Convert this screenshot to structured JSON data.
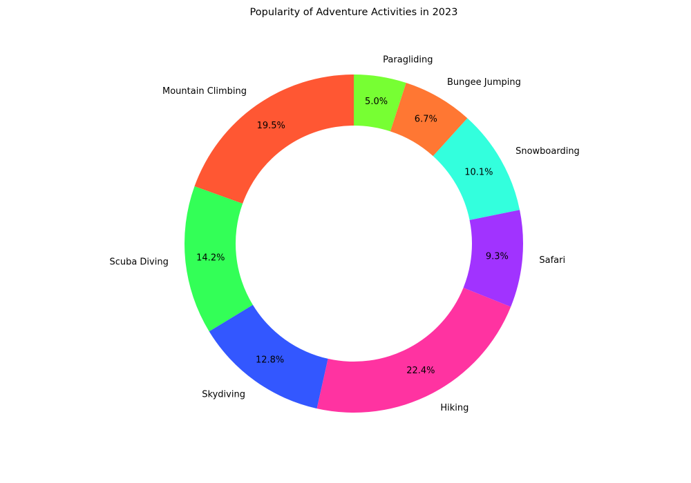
{
  "chart_data": {
    "type": "pie",
    "title": "Popularity of Adventure Activities in 2023",
    "categories": [
      "Mountain Climbing",
      "Scuba Diving",
      "Skydiving",
      "Hiking",
      "Safari",
      "Snowboarding",
      "Bungee Jumping",
      "Paragliding"
    ],
    "values": [
      19.5,
      14.2,
      12.8,
      22.4,
      9.3,
      10.1,
      6.7,
      5.0
    ],
    "percent_labels": [
      "19.5%",
      "14.2%",
      "12.8%",
      "22.4%",
      "9.3%",
      "10.1%",
      "6.7%",
      "5.0%"
    ],
    "colors": [
      "#FF5733",
      "#33FF57",
      "#3357FF",
      "#FF33A1",
      "#A133FF",
      "#33FFDD",
      "#FF7733",
      "#77FF33"
    ],
    "donut": true,
    "start_angle_deg": 90,
    "direction": "counterclockwise",
    "legend": "none"
  }
}
